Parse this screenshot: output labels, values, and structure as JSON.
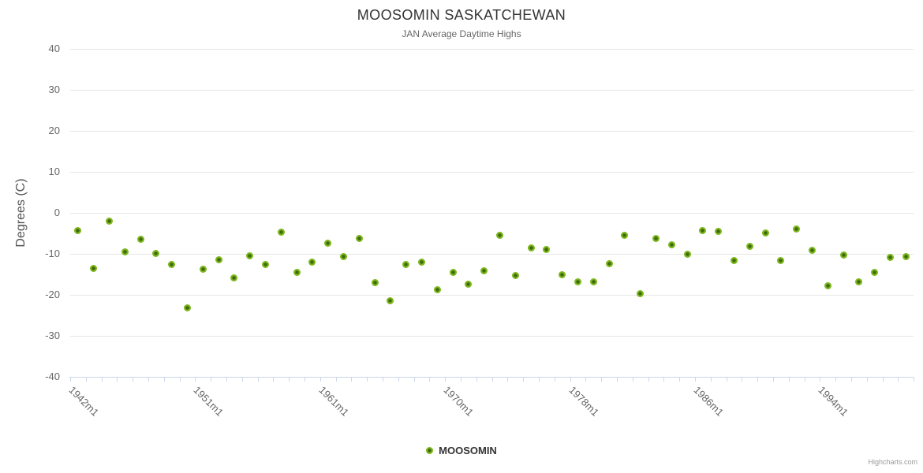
{
  "credits": "Highcharts.com",
  "colors": {
    "grid": "#e6e6e6",
    "axis_line": "#ccd6eb",
    "title": "#333333",
    "subtitle": "#666666",
    "axis_label": "#666666",
    "legend_text": "#333333",
    "credit_text": "#999999",
    "marker_outer": "#7cb61b",
    "marker_inner": "#3e690e"
  },
  "chart_data": {
    "type": "scatter",
    "title": "MOOSOMIN SASKATCHEWAN",
    "subtitle": "JAN Average Daytime Highs",
    "xlabel": "",
    "ylabel": "Degrees (C)",
    "ylim": [
      -40,
      40
    ],
    "y_ticks": [
      40,
      30,
      20,
      10,
      0,
      -10,
      -20,
      -30,
      -40
    ],
    "grid": true,
    "legend_position": "bottom-center",
    "x_tick_label_rotation": 45,
    "x_tick_labels": [
      {
        "index": 0,
        "label": "1942m1"
      },
      {
        "index": 8,
        "label": "1951m1"
      },
      {
        "index": 16,
        "label": "1961m1"
      },
      {
        "index": 24,
        "label": "1970m1"
      },
      {
        "index": 32,
        "label": "1978m1"
      },
      {
        "index": 40,
        "label": "1986m1"
      },
      {
        "index": 48,
        "label": "1994m1"
      }
    ],
    "series": [
      {
        "name": "MOOSOMIN",
        "values": [
          -4.4,
          -13.6,
          -2.0,
          -9.5,
          -6.4,
          -9.9,
          -12.6,
          -23.2,
          -13.8,
          -11.4,
          -15.8,
          -10.4,
          -12.5,
          -4.8,
          -14.5,
          -12.0,
          -7.4,
          -10.6,
          -6.3,
          -17.1,
          -21.4,
          -12.5,
          -12.1,
          -18.7,
          -14.6,
          -17.4,
          -14.1,
          -5.4,
          -15.2,
          -8.5,
          -8.9,
          -15.1,
          -16.8,
          -16.8,
          -12.4,
          -5.4,
          -19.8,
          -6.2,
          -7.7,
          -10.1,
          -4.4,
          -4.5,
          -11.7,
          -8.2,
          -4.9,
          -11.7,
          -3.9,
          -9.2,
          -17.8,
          -10.3,
          -16.9,
          -14.6,
          -10.8,
          -10.6
        ]
      }
    ]
  }
}
